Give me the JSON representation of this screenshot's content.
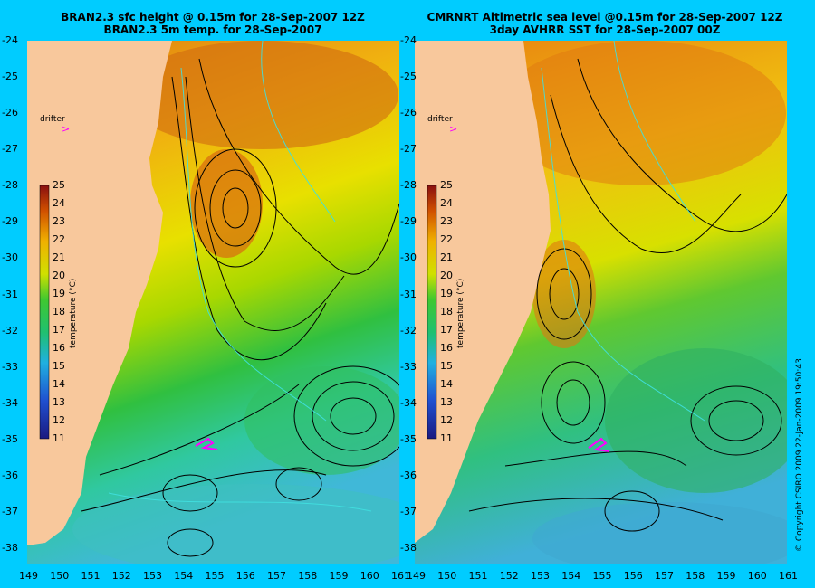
{
  "panels": [
    {
      "title_line1": "BRAN2.3 sfc height @ 0.15m for 28-Sep-2007 12Z",
      "title_line2": "BRAN2.3 5m temp. for 28-Sep-2007",
      "drifter_label": "drifter",
      "colorbar_label": "temperature (°C)"
    },
    {
      "title_line1": "CMRNRT Altimetric sea level  @0.15m  for 28-Sep-2007 12Z",
      "title_line2": "3day AVHRR SST for 28-Sep-2007 00Z",
      "drifter_label": "drifter",
      "colorbar_label": "temperature (°C)"
    }
  ],
  "colorbar_ticks": [
    "25",
    "24",
    "23",
    "22",
    "21",
    "20",
    "19",
    "18",
    "17",
    "16",
    "15",
    "14",
    "13",
    "12",
    "11"
  ],
  "lat_ticks": [
    "-24",
    "-25",
    "-26",
    "-27",
    "-28",
    "-29",
    "-30",
    "-31",
    "-32",
    "-33",
    "-34",
    "-35",
    "-36",
    "-37",
    "-38"
  ],
  "lon_ticks": [
    "149",
    "150",
    "151",
    "152",
    "153",
    "154",
    "155",
    "156",
    "157",
    "158",
    "159",
    "160",
    "161"
  ],
  "copyright": "© Copyright CSIRO 2009   22-Jan-2009 19:50:43",
  "colors": {
    "background": "#00ccff",
    "land": "#f8c89c",
    "drifter": "#ff00ff"
  }
}
